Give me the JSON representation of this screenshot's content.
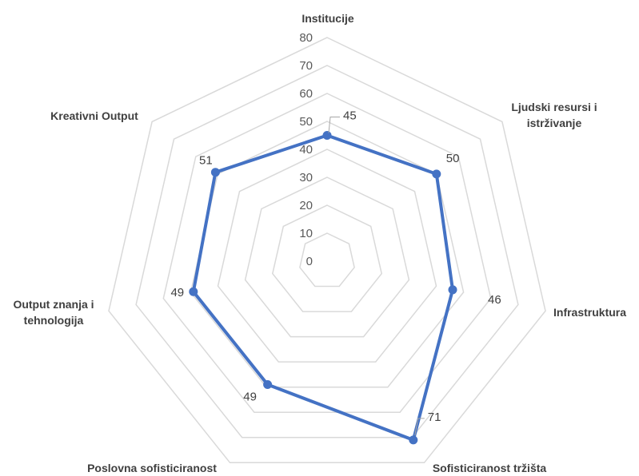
{
  "chart_data": {
    "type": "radar",
    "categories": [
      [
        "Institucije"
      ],
      [
        "Ljudski resursi i",
        "istrživanje"
      ],
      [
        "Infrastruktura"
      ],
      [
        "Sofisticiranost tržišta"
      ],
      [
        "Poslovna sofisticiranost"
      ],
      [
        "Output znanja i",
        "tehnologija"
      ],
      [
        "Kreativni Output"
      ]
    ],
    "values": [
      45,
      50,
      46,
      71,
      49,
      49,
      51
    ],
    "rlim": [
      0,
      80
    ],
    "ticks": [
      "0",
      "10",
      "20",
      "30",
      "40",
      "50",
      "60",
      "70",
      "80"
    ],
    "grid": true,
    "series_color": "#4472c4",
    "grid_color": "#d9d9d9"
  }
}
